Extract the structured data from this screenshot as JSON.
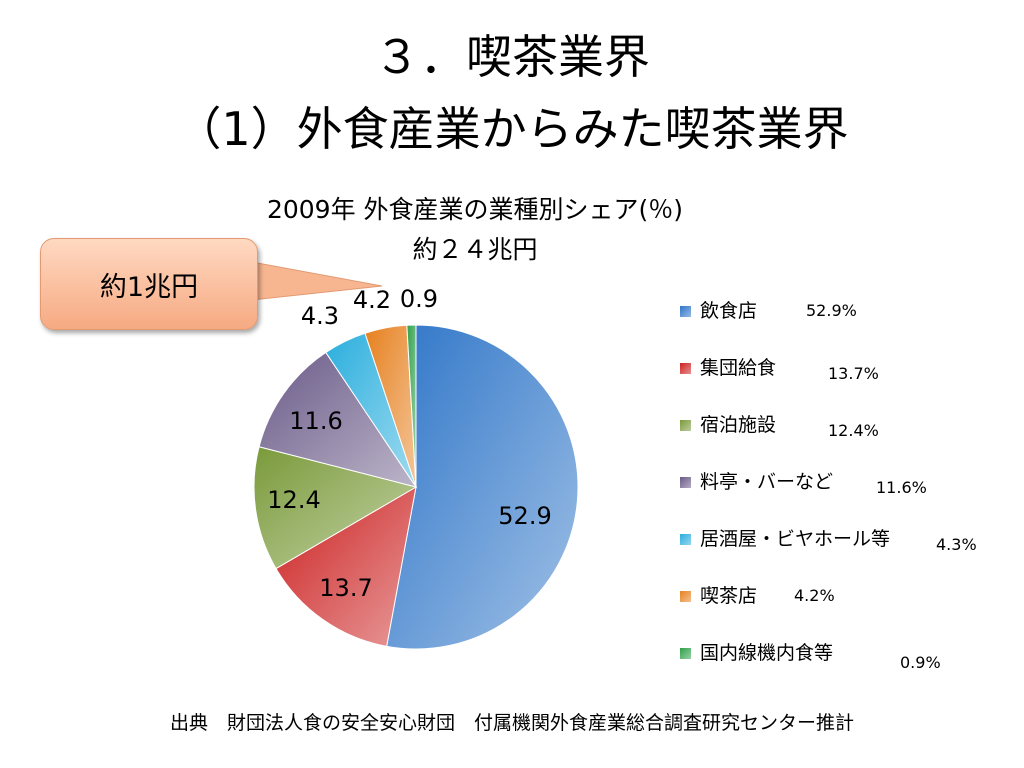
{
  "slide": {
    "title_line1": "３．喫茶業界",
    "title_line2": "（1）外食産業からみた喫茶業界"
  },
  "callout": {
    "text": "約1兆円"
  },
  "source": "出典　財団法人食の安全安心財団　付属機関外食産業総合調査研究センター推計",
  "chart_data": {
    "type": "pie",
    "title": "2009年 外食産業の業種別シェア(％)",
    "subtitle": "約２４兆円",
    "categories": [
      "飲食店",
      "集団給食",
      "宿泊施設",
      "料亭・バーなど",
      "居酒屋・ビヤホール等",
      "喫茶店",
      "国内線機内食等"
    ],
    "values": [
      52.9,
      13.7,
      12.4,
      11.6,
      4.3,
      4.2,
      0.9
    ],
    "data_labels": [
      "52.9",
      "13.7",
      "12.4",
      "11.6",
      "4.3",
      "4.2",
      "0.9"
    ],
    "legend_values": [
      "52.9%",
      "13.7%",
      "12.4%",
      "11.6%",
      "4.3%",
      "4.2%",
      "0.9%"
    ],
    "colors": [
      "#2e75c8",
      "#cc2020",
      "#7a9a3a",
      "#6a5a88",
      "#2aaedd",
      "#e6801e",
      "#2ea04a"
    ],
    "legend_placement": "right",
    "start_angle": "12 o'clock",
    "direction": "clockwise"
  }
}
